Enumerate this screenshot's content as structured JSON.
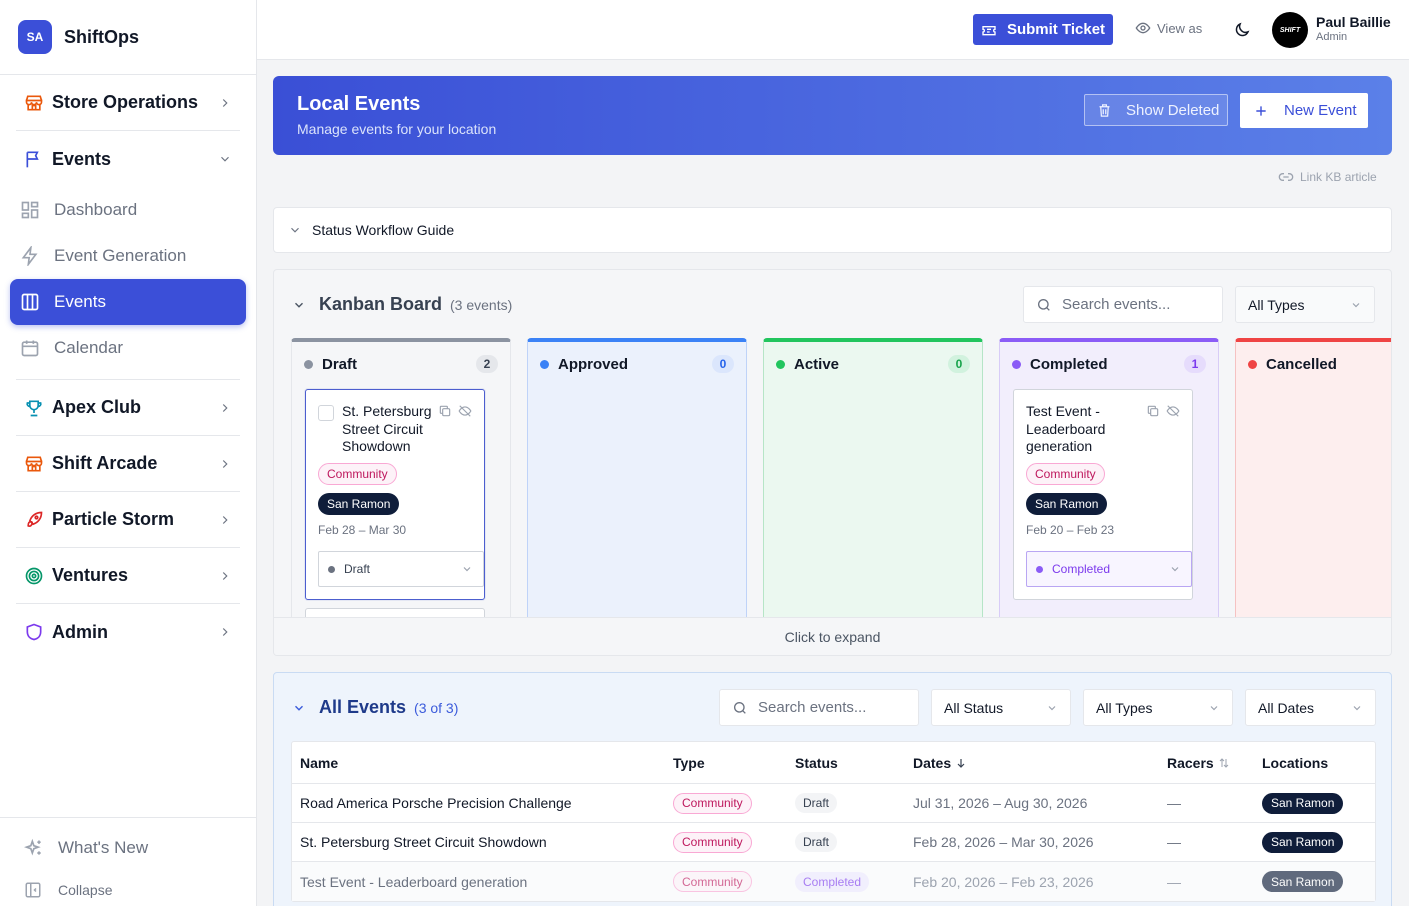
{
  "app": {
    "initials": "SA",
    "name": "ShiftOps"
  },
  "sidebar": {
    "sections": [
      {
        "label": "Store Operations",
        "icon": "store-icon",
        "color": "#ea580c"
      },
      {
        "label": "Events",
        "icon": "flag-icon",
        "color": "#3b4fd8"
      },
      {
        "label": "Apex Club",
        "icon": "trophy-icon",
        "color": "#0891b2"
      },
      {
        "label": "Shift Arcade",
        "icon": "store-icon",
        "color": "#ea580c"
      },
      {
        "label": "Particle Storm",
        "icon": "rocket-icon",
        "color": "#dc2626"
      },
      {
        "label": "Ventures",
        "icon": "target-icon",
        "color": "#059669"
      },
      {
        "label": "Admin",
        "icon": "shield-icon",
        "color": "#7c3aed"
      }
    ],
    "events_sub": [
      {
        "label": "Dashboard",
        "icon": "dashboard-icon"
      },
      {
        "label": "Event Generation",
        "icon": "bolt-icon"
      },
      {
        "label": "Events",
        "icon": "columns-icon",
        "active": true
      },
      {
        "label": "Calendar",
        "icon": "calendar-icon"
      }
    ],
    "whats_new": "What's New",
    "collapse": "Collapse"
  },
  "topbar": {
    "submit_ticket": "Submit Ticket",
    "view_as": "View as",
    "user_name": "Paul Baillie",
    "user_role": "Admin",
    "avatar_text": "SHIFT"
  },
  "hero": {
    "title": "Local Events",
    "subtitle": "Manage events for your location",
    "show_deleted": "Show Deleted",
    "new_event": "New Event"
  },
  "kb_link": "Link KB article",
  "guide": "Status Workflow Guide",
  "kanban": {
    "title": "Kanban Board",
    "count": "(3 events)",
    "search_placeholder": "Search events...",
    "type_filter": "All Types",
    "columns": [
      {
        "name": "Draft",
        "count": "2",
        "color": "#6b7280"
      },
      {
        "name": "Approved",
        "count": "0",
        "color": "#3b82f6"
      },
      {
        "name": "Active",
        "count": "0",
        "color": "#22c55e"
      },
      {
        "name": "Completed",
        "count": "1",
        "color": "#8b5cf6"
      },
      {
        "name": "Cancelled",
        "count": "",
        "color": "#ef4444"
      }
    ],
    "cards": [
      {
        "title": "St. Petersburg Street Circuit Showdown",
        "type": "Community",
        "location": "San Ramon",
        "dates": "Feb 28 – Mar 30",
        "status": "Draft"
      },
      {
        "title": "Test Event - Leaderboard generation",
        "type": "Community",
        "location": "San Ramon",
        "dates": "Feb 20 – Feb 23",
        "status": "Completed"
      }
    ],
    "expand": "Click to expand"
  },
  "all_events": {
    "title": "All Events",
    "count": "(3 of 3)",
    "search_placeholder": "Search events...",
    "status_filter": "All Status",
    "type_filter": "All Types",
    "date_filter": "All Dates",
    "headers": [
      "Name",
      "Type",
      "Status",
      "Dates",
      "Racers",
      "Locations"
    ],
    "rows": [
      {
        "name": "Road America Porsche Precision Challenge",
        "type": "Community",
        "status": "Draft",
        "dates": "Jul 31, 2026 – Aug 30, 2026",
        "racers": "—",
        "location": "San Ramon"
      },
      {
        "name": "St. Petersburg Street Circuit Showdown",
        "type": "Community",
        "status": "Draft",
        "dates": "Feb 28, 2026 – Mar 30, 2026",
        "racers": "—",
        "location": "San Ramon"
      },
      {
        "name": "Test Event - Leaderboard generation",
        "type": "Community",
        "status": "Completed",
        "dates": "Feb 20, 2026 – Feb 23, 2026",
        "racers": "—",
        "location": "San Ramon"
      }
    ]
  }
}
